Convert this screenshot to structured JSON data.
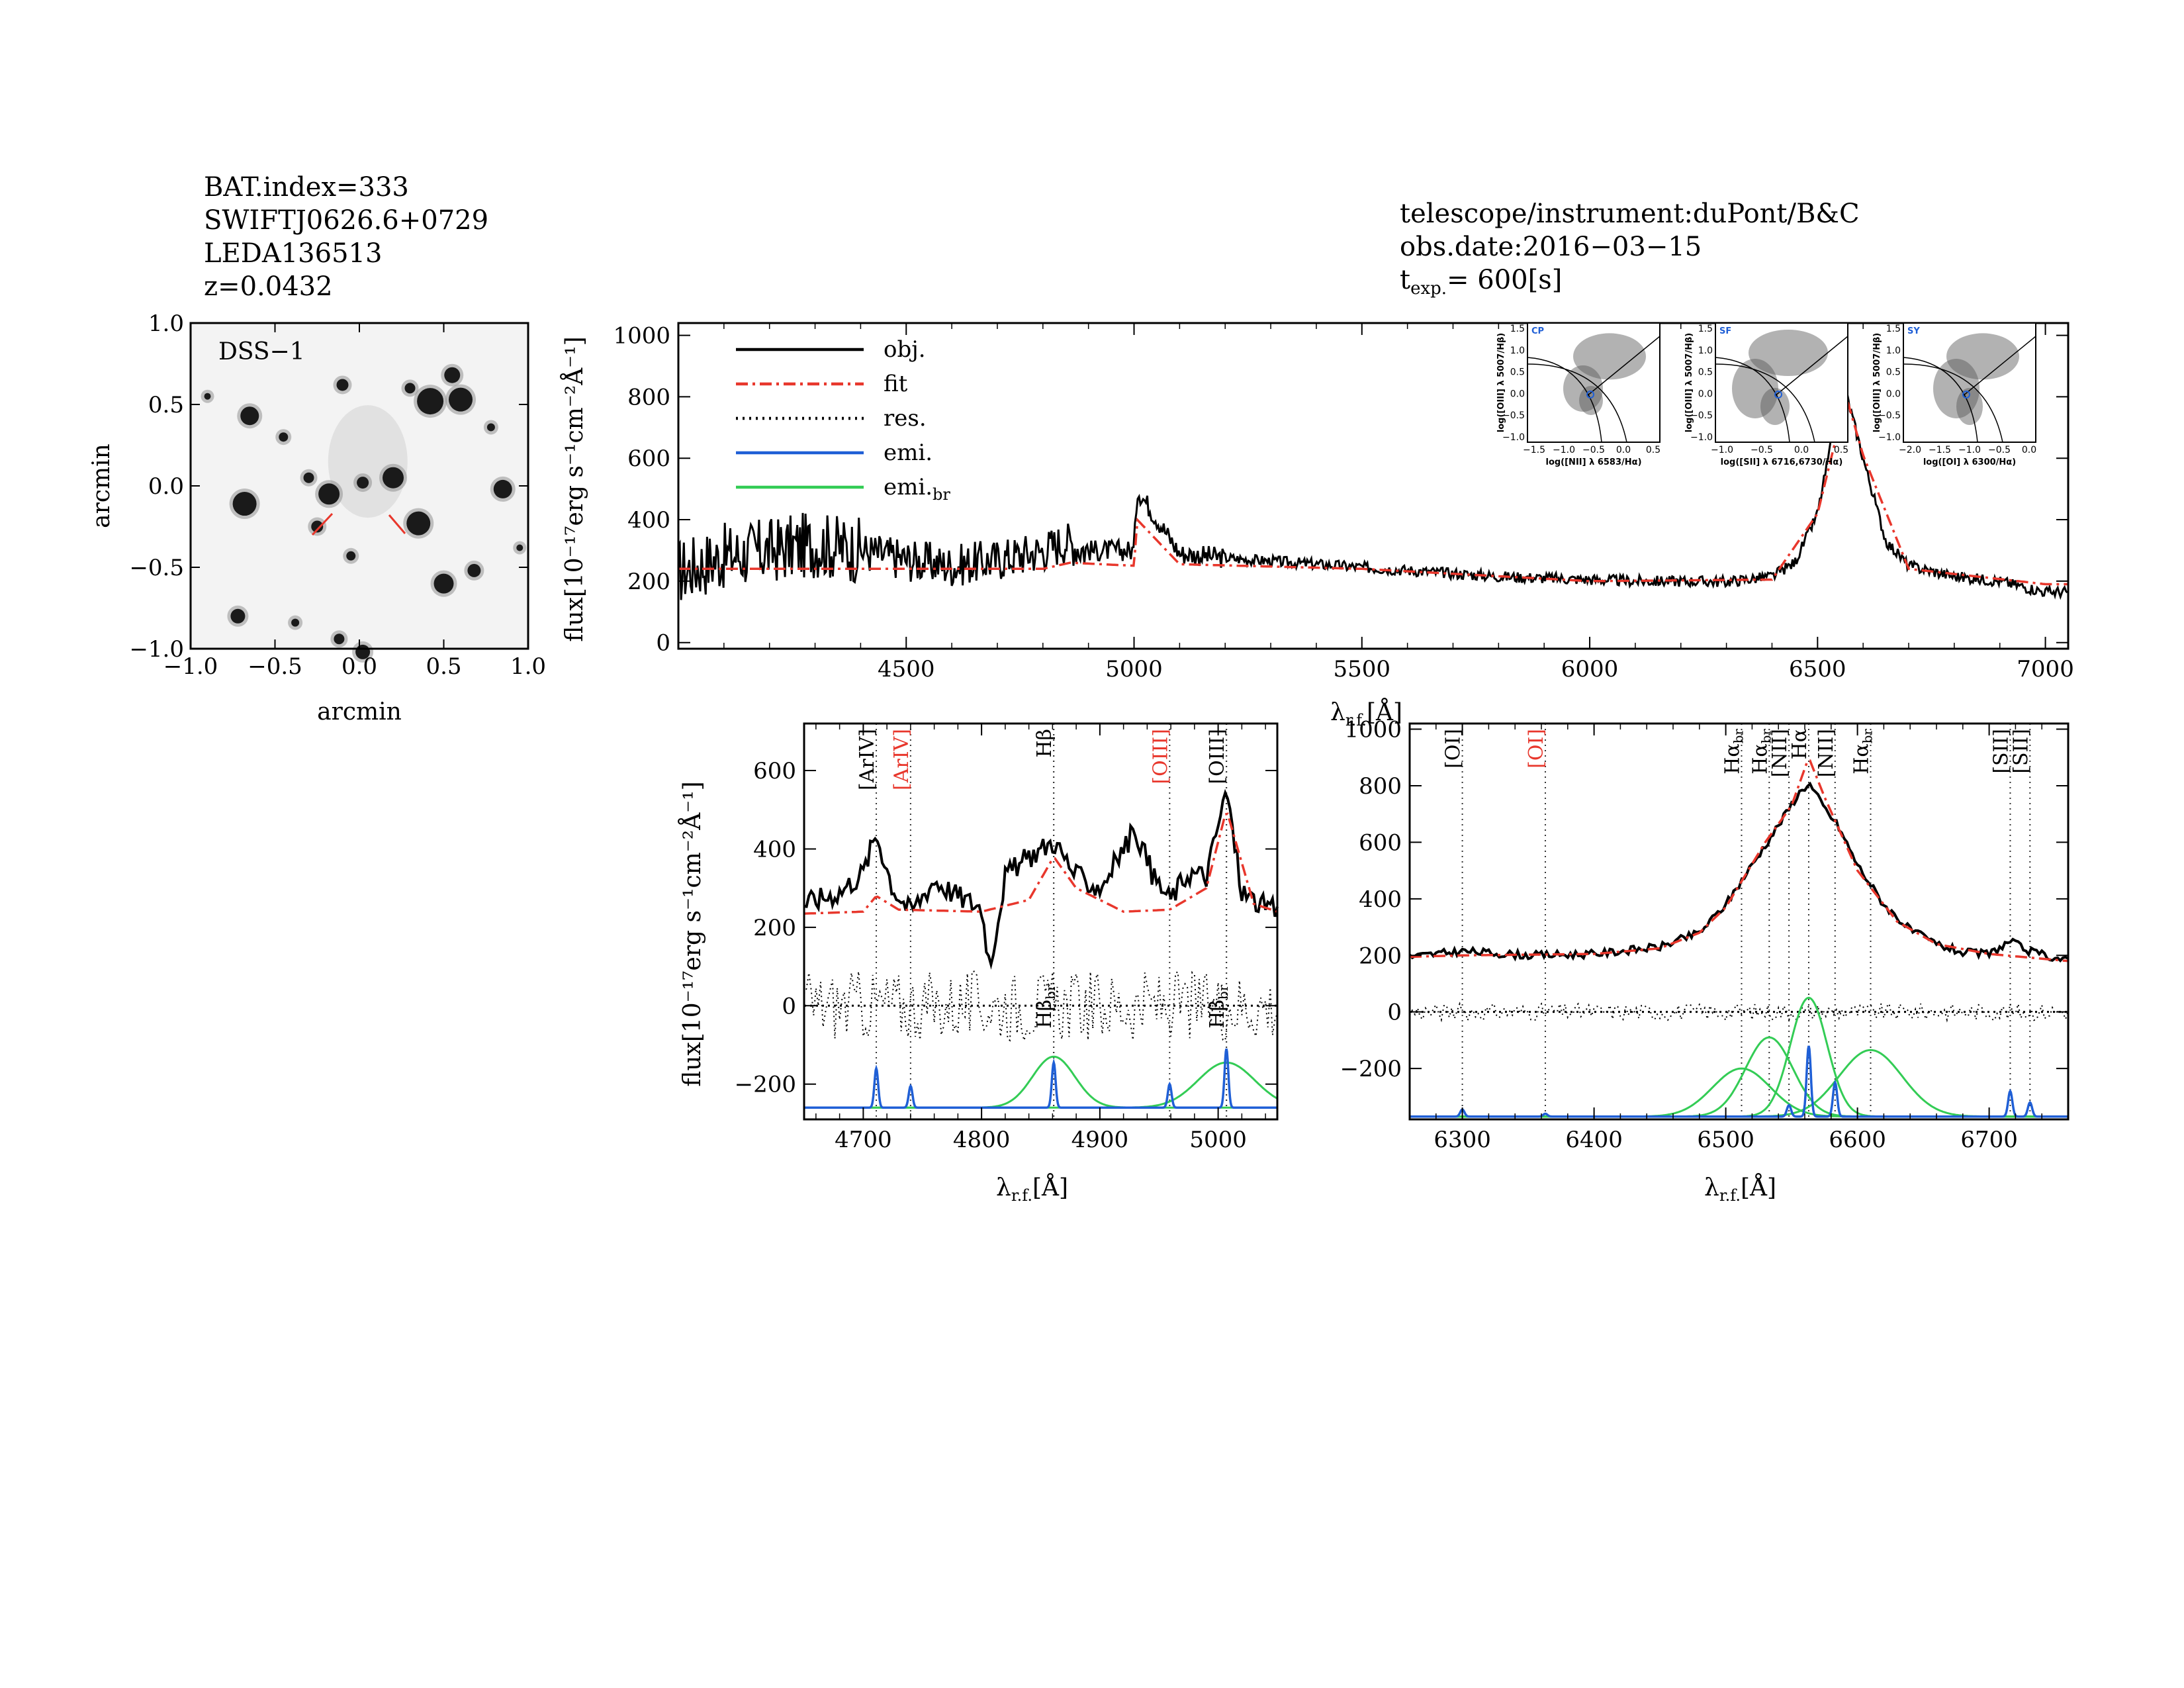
{
  "header": {
    "left_lines": [
      "BAT.index=333",
      "SWIFTJ0626.6+0729",
      "LEDA136513",
      "z=0.0432"
    ],
    "right_lines": [
      "telescope/instrument:duPont/B&C",
      "obs.date:2016−03−15"
    ],
    "texp_main": "t",
    "texp_sub": "exp.",
    "texp_value": "=  600[s]"
  },
  "image_panel": {
    "label": "DSS−1",
    "xlabel": "arcmin",
    "ylabel": "arcmin",
    "xticks": [
      "−1.0",
      "−0.5",
      "0.0",
      "0.5",
      "1.0"
    ],
    "yticks": [
      "−1.0",
      "−0.5",
      "0.0",
      "0.5",
      "1.0"
    ],
    "marker_color": "#e8372c"
  },
  "colors": {
    "obj": "#000000",
    "fit": "#e8372c",
    "res": "#000000",
    "emi": "#1f5fd6",
    "emi_br": "#33cc55"
  },
  "legend": [
    {
      "label": "obj.",
      "style": "solid",
      "color": "#000000"
    },
    {
      "label": "fit",
      "style": "dashdot",
      "color": "#e8372c"
    },
    {
      "label": "res.",
      "style": "dotted",
      "color": "#000000"
    },
    {
      "label": "emi.",
      "style": "solid",
      "color": "#1f5fd6"
    },
    {
      "label": "emi.",
      "sub": "br",
      "style": "solid",
      "color": "#33cc55"
    }
  ],
  "axis_text": {
    "flux_ylabel": "flux[10⁻¹⁷erg s⁻¹cm⁻²Å⁻¹]",
    "lambda_main": "λ",
    "lambda_sub": "r.f.",
    "lambda_unit": "[Å]"
  },
  "bpt": [
    {
      "tag": "CP",
      "xlabel": "log([NII] λ 6583/Hα)",
      "ylabel": "log([OIII] λ 5007/Hβ)",
      "xticks": [
        "−1.5",
        "−1.0",
        "−0.5",
        "0.0",
        "0.5"
      ],
      "xlim": [
        -1.5,
        0.5
      ]
    },
    {
      "tag": "SF",
      "xlabel": "log([SII] λ 6716,6730/Hα)",
      "ylabel": "log([OIII] λ 5007/Hβ)",
      "xticks": [
        "−1.0",
        "−0.5",
        "0.0",
        "0.5"
      ],
      "xlim": [
        -1.2,
        0.6
      ]
    },
    {
      "tag": "SY",
      "xlabel": "log([OI] λ 6300/Hα)",
      "ylabel": "log([OIII] λ 5007/Hβ)",
      "xticks": [
        "−2.0",
        "−1.5",
        "−1.0",
        "−0.5",
        "0.0"
      ],
      "xlim": [
        -2.2,
        0.2
      ]
    }
  ],
  "bpt_yticks": [
    "−1.0",
    "−0.5",
    "0.0",
    "0.5",
    "1.0",
    "1.5"
  ],
  "chart_data": [
    {
      "type": "line",
      "panel": "full spectrum",
      "xlim": [
        4000,
        7050
      ],
      "ylim": [
        -20,
        1040
      ],
      "xticks": [
        4500,
        5000,
        5500,
        6000,
        6500,
        7000
      ],
      "yticks": [
        0,
        200,
        400,
        600,
        800,
        1000
      ],
      "series": [
        {
          "name": "obj.",
          "x": [
            4000,
            4100,
            4200,
            4300,
            4400,
            4500,
            4600,
            4700,
            4800,
            4850,
            4900,
            5000,
            5007,
            5100,
            5200,
            5300,
            5400,
            5500,
            5600,
            5700,
            5800,
            5900,
            6000,
            6100,
            6200,
            6300,
            6400,
            6450,
            6500,
            6530,
            6563,
            6600,
            6650,
            6700,
            6800,
            6900,
            7000
          ],
          "y": [
            230,
            280,
            300,
            320,
            300,
            270,
            250,
            270,
            300,
            330,
            300,
            300,
            500,
            290,
            275,
            265,
            255,
            245,
            235,
            225,
            215,
            210,
            205,
            200,
            200,
            198,
            215,
            260,
            420,
            650,
            810,
            600,
            330,
            250,
            215,
            200,
            165
          ]
        },
        {
          "name": "fit",
          "x": [
            4000,
            4500,
            4800,
            4860,
            5000,
            5007,
            5100,
            5500,
            6000,
            6400,
            6500,
            6563,
            6600,
            6700,
            7000
          ],
          "y": [
            240,
            240,
            240,
            260,
            250,
            400,
            255,
            240,
            200,
            205,
            420,
            800,
            610,
            240,
            190
          ]
        }
      ]
    },
    {
      "type": "line",
      "panel": "H-beta / [OIII] zoom",
      "xlim": [
        4650,
        5050
      ],
      "ylim": [
        -290,
        720
      ],
      "xticks": [
        4700,
        4800,
        4900,
        5000
      ],
      "yticks": [
        -200,
        0,
        200,
        400,
        600
      ],
      "series": [
        {
          "name": "obj.",
          "x": [
            4650,
            4680,
            4700,
            4711,
            4725,
            4740,
            4760,
            4780,
            4800,
            4807,
            4820,
            4840,
            4861,
            4880,
            4900,
            4930,
            4945,
            4959,
            4975,
            4990,
            5007,
            5020,
            5040,
            5050
          ],
          "y": [
            260,
            290,
            340,
            440,
            300,
            240,
            320,
            280,
            250,
            100,
            330,
            380,
            420,
            330,
            300,
            450,
            330,
            270,
            340,
            330,
            550,
            290,
            250,
            240
          ]
        },
        {
          "name": "fit",
          "x": [
            4650,
            4700,
            4711,
            4730,
            4800,
            4840,
            4861,
            4880,
            4920,
            4959,
            4990,
            5007,
            5030,
            5050
          ],
          "y": [
            235,
            240,
            280,
            245,
            240,
            270,
            380,
            300,
            240,
            245,
            300,
            500,
            260,
            240
          ]
        },
        {
          "name": "emi.",
          "lines": [
            {
              "center": 4711,
              "amp": 100
            },
            {
              "center": 4740,
              "amp": 55
            },
            {
              "center": 4861,
              "amp": 115
            },
            {
              "center": 4959,
              "amp": 60
            },
            {
              "center": 5007,
              "amp": 150
            }
          ]
        },
        {
          "name": "emi.br",
          "lines": [
            {
              "center": 4861,
              "amp": 130,
              "sigma": 18
            },
            {
              "center": 5007,
              "amp": 115,
              "sigma": 24
            }
          ]
        }
      ],
      "annotations": [
        {
          "label": "[ArIV]",
          "x": 4711,
          "color": "#000000"
        },
        {
          "label": "[ArIV]",
          "x": 4740,
          "color": "#e8372c"
        },
        {
          "label": "Hβ",
          "x": 4861,
          "color": "#000000"
        },
        {
          "label": "[OIII]",
          "x": 4959,
          "color": "#e8372c"
        },
        {
          "label": "[OIII]",
          "x": 5007,
          "color": "#000000"
        },
        {
          "label": "Hβ",
          "sub": "br",
          "x": 4861,
          "color": "#000000",
          "low": true
        },
        {
          "label": "Hβ",
          "sub": "br",
          "x": 5007,
          "color": "#000000",
          "low": true
        }
      ]
    },
    {
      "type": "line",
      "panel": "H-alpha zoom",
      "xlim": [
        6260,
        6760
      ],
      "ylim": [
        -380,
        1020
      ],
      "xticks": [
        6300,
        6400,
        6500,
        6600,
        6700
      ],
      "yticks": [
        -200,
        0,
        200,
        400,
        600,
        800,
        1000
      ],
      "series": [
        {
          "name": "obj.",
          "x": [
            6260,
            6300,
            6350,
            6400,
            6450,
            6480,
            6500,
            6520,
            6540,
            6555,
            6563,
            6575,
            6585,
            6600,
            6620,
            6640,
            6660,
            6680,
            6700,
            6716,
            6730,
            6760
          ],
          "y": [
            195,
            215,
            200,
            205,
            230,
            280,
            380,
            520,
            660,
            770,
            810,
            720,
            660,
            520,
            380,
            290,
            240,
            210,
            205,
            250,
            215,
            180
          ]
        },
        {
          "name": "fit",
          "x": [
            6260,
            6300,
            6400,
            6450,
            6480,
            6500,
            6530,
            6550,
            6563,
            6575,
            6600,
            6630,
            6660,
            6700,
            6760
          ],
          "y": [
            195,
            200,
            205,
            225,
            280,
            370,
            600,
            730,
            900,
            760,
            500,
            320,
            240,
            205,
            180
          ]
        },
        {
          "name": "emi.",
          "lines": [
            {
              "center": 6300,
              "amp": 25
            },
            {
              "center": 6363,
              "amp": 10
            },
            {
              "center": 6548,
              "amp": 40
            },
            {
              "center": 6563,
              "amp": 250
            },
            {
              "center": 6583,
              "amp": 120
            },
            {
              "center": 6716,
              "amp": 90
            },
            {
              "center": 6731,
              "amp": 50
            }
          ]
        },
        {
          "name": "emi.br",
          "lines": [
            {
              "center": 6512,
              "amp": 170,
              "sigma": 22
            },
            {
              "center": 6533,
              "amp": 280,
              "sigma": 18
            },
            {
              "center": 6563,
              "amp": 420,
              "sigma": 14
            },
            {
              "center": 6610,
              "amp": 235,
              "sigma": 24
            }
          ]
        }
      ],
      "annotations": [
        {
          "label": "[OI]",
          "x": 6300,
          "color": "#000000"
        },
        {
          "label": "[OI]",
          "x": 6363,
          "color": "#e8372c"
        },
        {
          "label": "Hα",
          "sub": "br",
          "x": 6512,
          "color": "#000000"
        },
        {
          "label": "Hα",
          "sub": "br",
          "x": 6533,
          "color": "#000000"
        },
        {
          "label": "[NII]",
          "x": 6548,
          "color": "#000000"
        },
        {
          "label": "Hα",
          "x": 6563,
          "color": "#000000"
        },
        {
          "label": "[NII]",
          "x": 6583,
          "color": "#000000"
        },
        {
          "label": "Hα",
          "sub": "br",
          "x": 6610,
          "color": "#000000"
        },
        {
          "label": "[SII]",
          "x": 6716,
          "color": "#000000"
        },
        {
          "label": "[SII]",
          "x": 6731,
          "color": "#000000"
        }
      ]
    }
  ]
}
